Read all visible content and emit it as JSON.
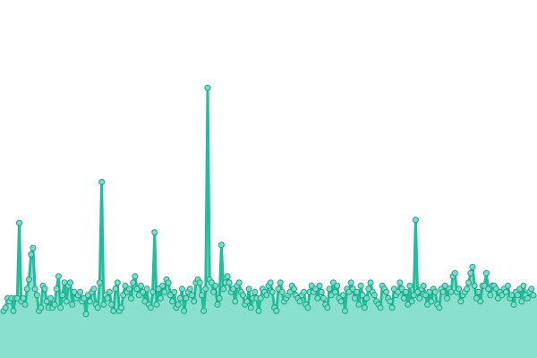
{
  "colors": {
    "background": "#ffffff",
    "area_fill": "#89e0cf",
    "line": "#1fbf9a",
    "marker_fill": "#7ddcc8",
    "marker_stroke": "#17a385"
  },
  "chart_data": {
    "type": "area",
    "title": "",
    "xlabel": "",
    "ylabel": "",
    "grid": false,
    "legend": "none",
    "axes_visible": false,
    "ylim": [
      0,
      100
    ],
    "series": [
      {
        "markers": true,
        "values": [
          15,
          16,
          19,
          18,
          19,
          15,
          19,
          19,
          43,
          18,
          19,
          17,
          22,
          25,
          33,
          35,
          22,
          20,
          15,
          16,
          23,
          22,
          18,
          16,
          19,
          16,
          17,
          22,
          26,
          16,
          20,
          24,
          18,
          23,
          24,
          17,
          21,
          19,
          20,
          21,
          18,
          19,
          14,
          20,
          18,
          21,
          22,
          17,
          16,
          24,
          56,
          17,
          20,
          19,
          21,
          17,
          15,
          22,
          24,
          15,
          16,
          20,
          23,
          21,
          22,
          19,
          24,
          26,
          22,
          20,
          23,
          21,
          18,
          22,
          17,
          16,
          21,
          40,
          17,
          22,
          19,
          23,
          21,
          25,
          24,
          20,
          18,
          21,
          16,
          17,
          19,
          22,
          15,
          19,
          21,
          22,
          20,
          18,
          24,
          25,
          24,
          20,
          15,
          22,
          86,
          25,
          24,
          21,
          23,
          17,
          19,
          36,
          22,
          24,
          26,
          24,
          21,
          22,
          18,
          23,
          24,
          21,
          20,
          17,
          18,
          22,
          16,
          19,
          21,
          19,
          15,
          19,
          22,
          21,
          20,
          23,
          24,
          21,
          16,
          15,
          22,
          24,
          21,
          18,
          19,
          20,
          21,
          23,
          22,
          20,
          19,
          18,
          20,
          21,
          17,
          16,
          21,
          23,
          21,
          22,
          19,
          23,
          21,
          19,
          17,
          16,
          22,
          20,
          24,
          21,
          23,
          19,
          18,
          20,
          15,
          22,
          21,
          24,
          22,
          19,
          21,
          17,
          23,
          20,
          16,
          19,
          22,
          24,
          21,
          20,
          18,
          17,
          16,
          23,
          22,
          21,
          19,
          18,
          16,
          22,
          20,
          21,
          24,
          22,
          19,
          21,
          17,
          23,
          18,
          20,
          44,
          21,
          19,
          22,
          23,
          20,
          17,
          21,
          18,
          22,
          21,
          17,
          16,
          22,
          21,
          23,
          19,
          22,
          21,
          26,
          27,
          21,
          22,
          18,
          20,
          21,
          22,
          24,
          27,
          29,
          23,
          19,
          21,
          18,
          23,
          23,
          27,
          22,
          20,
          23,
          23,
          22,
          19,
          21,
          20,
          22,
          21,
          23,
          19,
          20,
          17,
          21,
          20,
          22,
          18,
          23,
          20,
          19,
          21,
          22,
          20
        ]
      }
    ]
  }
}
